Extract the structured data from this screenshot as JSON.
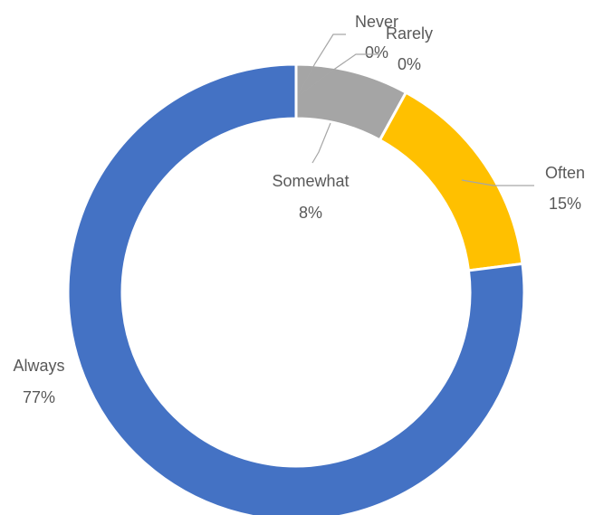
{
  "chart_data": {
    "type": "pie",
    "style": "donut",
    "start_angle_deg": 0,
    "direction": "clockwise",
    "slices": [
      {
        "name": "Never",
        "value": 0,
        "pct_label": "0%",
        "color": "#5B9BD5"
      },
      {
        "name": "Rarely",
        "value": 0,
        "pct_label": "0%",
        "color": "#ED7D31"
      },
      {
        "name": "Somewhat",
        "value": 8,
        "pct_label": "8%",
        "color": "#A5A5A5"
      },
      {
        "name": "Often",
        "value": 15,
        "pct_label": "15%",
        "color": "#FFC000"
      },
      {
        "name": "Always",
        "value": 77,
        "pct_label": "77%",
        "color": "#4472C4"
      }
    ],
    "leader_line_color": "#A6A6A6",
    "label_color": "#595959",
    "legend": "none"
  }
}
